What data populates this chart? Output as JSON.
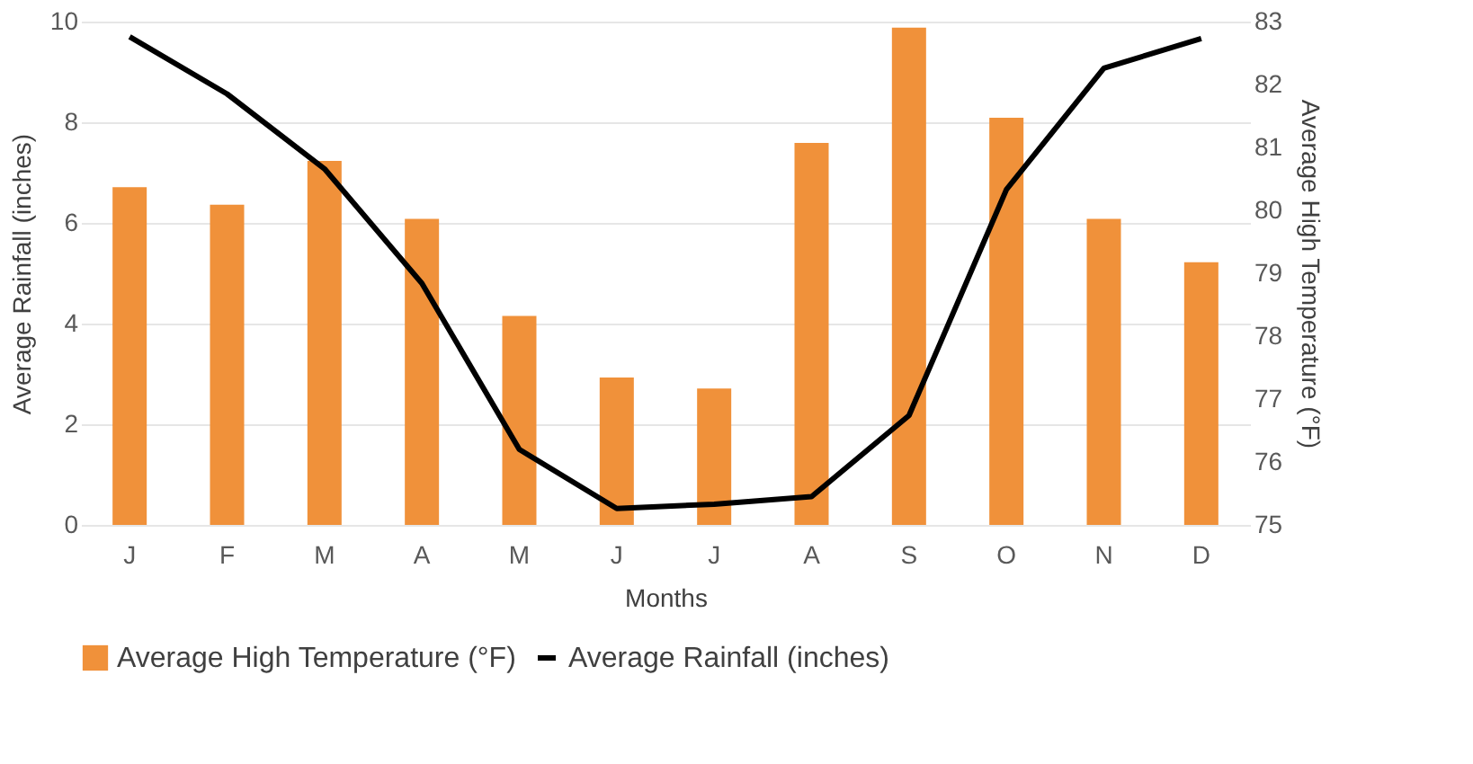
{
  "chart_data": {
    "type": "bar",
    "categories": [
      "J",
      "F",
      "M",
      "A",
      "M",
      "J",
      "J",
      "A",
      "S",
      "O",
      "N",
      "D"
    ],
    "xlabel": "Months",
    "ylabel": "Average Rainfall (inches)",
    "y2label": "Average High Temperature (°F)",
    "ylim": [
      0,
      10
    ],
    "yticks": [
      0,
      2,
      4,
      6,
      8,
      10
    ],
    "y2lim": [
      75,
      83
    ],
    "y2ticks": [
      75,
      76,
      77,
      78,
      79,
      80,
      81,
      82,
      83
    ],
    "grid": "y",
    "legend": "bottom",
    "marker": "none",
    "line_style": "solid",
    "series": [
      {
        "name": "Average High Temperature (°F)",
        "color": "#f0913a",
        "values": [
          6.71,
          6.36,
          7.23,
          6.08,
          4.15,
          2.93,
          2.71,
          7.59,
          9.88,
          8.09,
          6.08,
          5.22
        ]
      },
      {
        "name": "Average Rainfall (inches)",
        "type": "line",
        "axis": "y2",
        "color": "#000000",
        "values": [
          82.76,
          81.85,
          80.66,
          78.84,
          76.2,
          75.26,
          75.33,
          75.45,
          76.74,
          80.33,
          82.26,
          82.73
        ]
      }
    ]
  }
}
